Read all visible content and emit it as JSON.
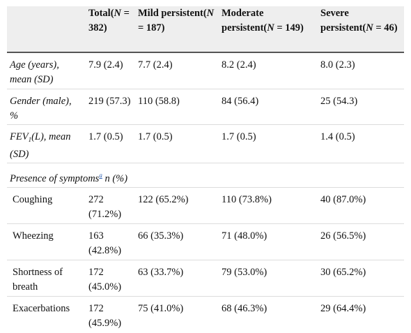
{
  "table": {
    "headers": {
      "total": {
        "prefix": "Total(",
        "var": "N",
        "suffix": " = 382)"
      },
      "mild": {
        "prefix": "Mild persistent(",
        "var": "N",
        "suffix": " = 187)"
      },
      "moderate": {
        "prefix": "Moderate persistent(",
        "var": "N",
        "suffix": " = 149)"
      },
      "severe": {
        "prefix": "Severe persistent(",
        "var": "N",
        "suffix": " = 46)"
      }
    },
    "rows": {
      "age": {
        "label": "Age (years), mean (SD)",
        "values": [
          "7.9 (2.4)",
          "7.7 (2.4)",
          "8.2 (2.4)",
          "8.0 (2.3)"
        ]
      },
      "gender": {
        "label": "Gender (male), %",
        "values": [
          "219 (57.3)",
          "110 (58.8)",
          "84 (56.4)",
          "25 (54.3)"
        ]
      },
      "fev": {
        "label_pre": "FEV",
        "label_sub": "1",
        "label_post": "(L), mean (SD)",
        "values": [
          "1.7 (0.5)",
          "1.7 (0.5)",
          "1.7 (0.5)",
          "1.4 (0.5)"
        ]
      },
      "presence": {
        "label_pre": "Presence of symptoms",
        "footnote": "a",
        "label_post": " n (%)"
      },
      "coughing": {
        "label": "Coughing",
        "values": [
          "272 (71.2%)",
          "122 (65.2%)",
          "110 (73.8%)",
          "40 (87.0%)"
        ]
      },
      "wheezing": {
        "label": "Wheezing",
        "values": [
          "163 (42.8%)",
          "66 (35.3%)",
          "71 (48.0%)",
          "26 (56.5%)"
        ]
      },
      "sob": {
        "label": "Shortness of breath",
        "values": [
          "172 (45.0%)",
          "63 (33.7%)",
          "79 (53.0%)",
          "30 (65.2%)"
        ]
      },
      "exacerbations": {
        "label": "Exacerbations",
        "values": [
          "172 (45.9%)",
          "75 (41.0%)",
          "68 (46.3%)",
          "29 (64.4%)"
        ]
      }
    }
  }
}
